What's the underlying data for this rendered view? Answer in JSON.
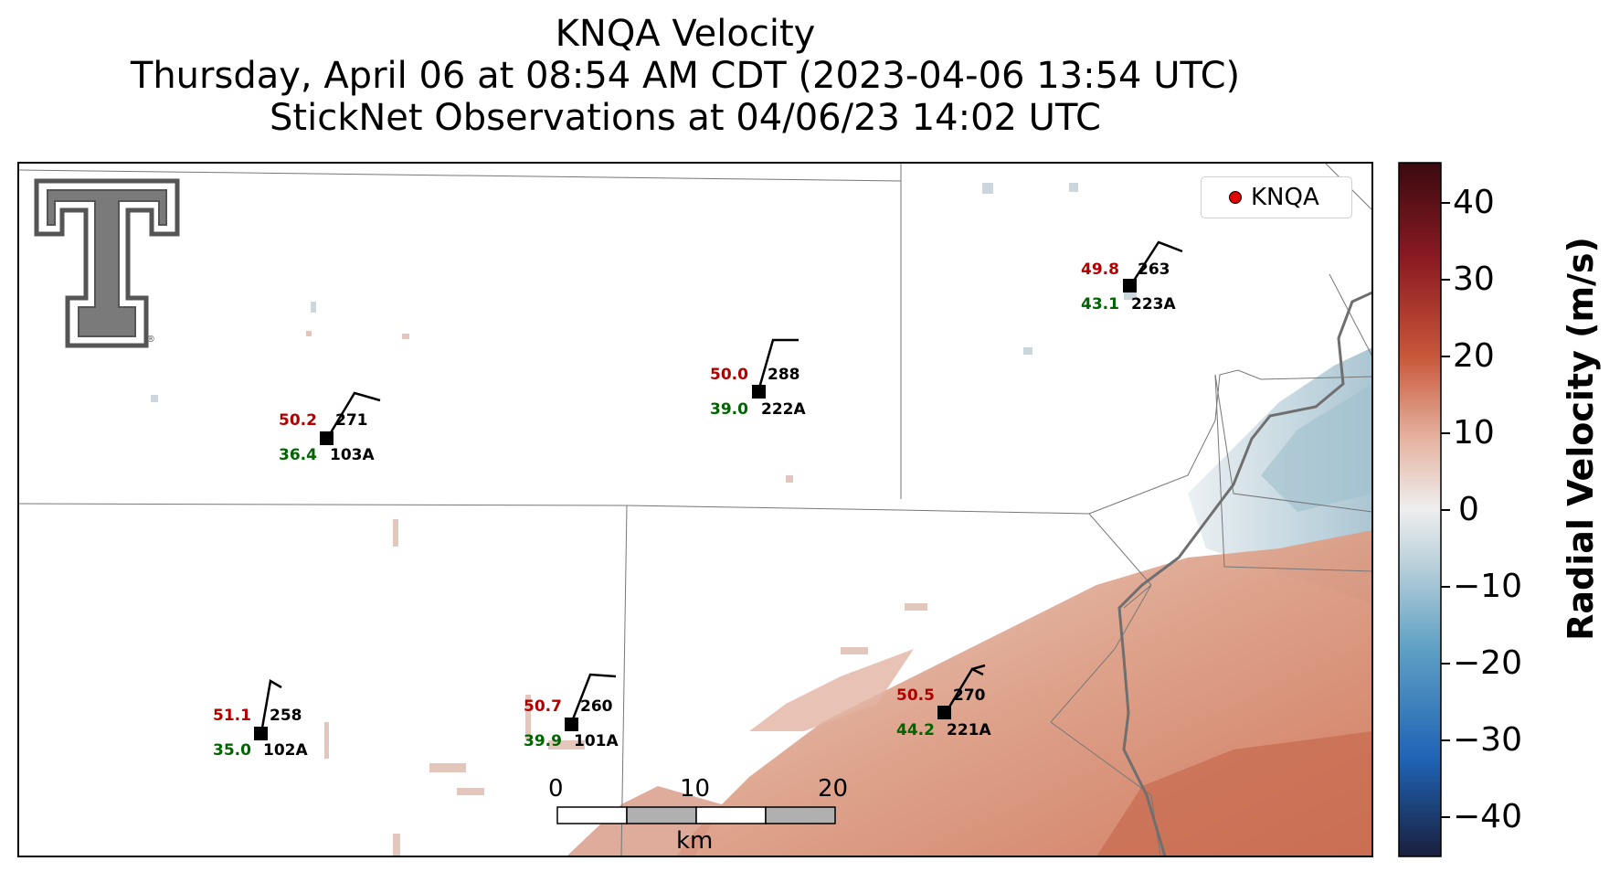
{
  "title": {
    "line1": "KNQA Velocity",
    "line2": "Thursday, April 06 at 08:54 AM CDT (2023-04-06 13:54 UTC)",
    "line3": "StickNet Observations at 04/06/23 14:02 UTC"
  },
  "legend": {
    "label": "KNQA",
    "marker_color": "#e00000"
  },
  "colorbar": {
    "title": "Radial Velocity (m/s)",
    "ticks": [
      "40",
      "30",
      "20",
      "10",
      "0",
      "−10",
      "−20",
      "−30",
      "−40"
    ],
    "range": [
      -45,
      45
    ],
    "colors": [
      "#1a1f3d",
      "#1f63b5",
      "#5fa0c4",
      "#b9d0da",
      "#eeeeee",
      "#e6b4a2",
      "#c8583a",
      "#8c1a22",
      "#3a0a10"
    ]
  },
  "scalebar": {
    "labels": [
      "0",
      "10",
      "20"
    ],
    "unit": "km"
  },
  "logo": {
    "icon": "texas-tech-double-t-logo",
    "color": "#555555"
  },
  "stations": [
    {
      "id": "103A",
      "temp": "50.2",
      "dew": "36.4",
      "dir": "271"
    },
    {
      "id": "222A",
      "temp": "50.0",
      "dew": "39.0",
      "dir": "288"
    },
    {
      "id": "223A",
      "temp": "49.8",
      "dew": "43.1",
      "dir": "263"
    },
    {
      "id": "102A",
      "temp": "51.1",
      "dew": "35.0",
      "dir": "258"
    },
    {
      "id": "101A",
      "temp": "50.7",
      "dew": "39.9",
      "dir": "260"
    },
    {
      "id": "221A",
      "temp": "50.5",
      "dew": "44.2",
      "dir": "270"
    }
  ],
  "colors": {
    "temp": "#b00000",
    "dew": "#006400",
    "warm_echo": "#d4826a",
    "cool_echo": "#9ab8c8"
  }
}
